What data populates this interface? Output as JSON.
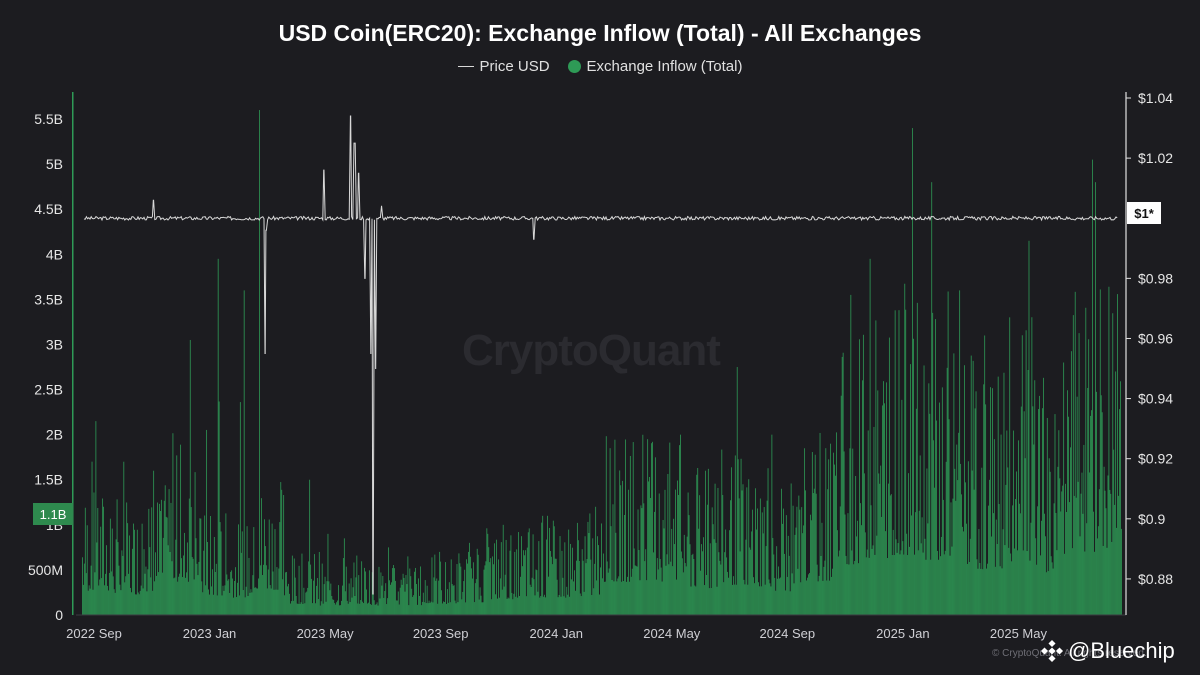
{
  "chart_data": {
    "type": "bar",
    "title": "USD Coin(ERC20): Exchange Inflow (Total) - All Exchanges",
    "legend": [
      {
        "name": "Price USD",
        "marker": "line",
        "color": "#d8d8d8"
      },
      {
        "name": "Exchange Inflow (Total)",
        "marker": "dot",
        "color": "#2e9a56"
      }
    ],
    "legend_position": "top-center",
    "grid": false,
    "x_axis": {
      "ticks": [
        "2022 Sep",
        "2023 Jan",
        "2023 May",
        "2023 Sep",
        "2024 Jan",
        "2024 May",
        "2024 Sep",
        "2025 Jan",
        "2025 May"
      ],
      "range": [
        "2022-09",
        "2025-08"
      ]
    },
    "y_left": {
      "label": "",
      "range": [
        0,
        5.8
      ],
      "unit": "B USD",
      "ticks": [
        "0",
        "500M",
        "1B",
        "1.5B",
        "2B",
        "2.5B",
        "3B",
        "3.5B",
        "4B",
        "4.5B",
        "5B",
        "5.5B"
      ]
    },
    "y_right": {
      "label": "",
      "range": [
        0.868,
        1.042
      ],
      "ticks": [
        "$0.88",
        "$0.9",
        "$0.92",
        "$0.94",
        "$0.96",
        "$0.98",
        "$1.02",
        "$1.04"
      ]
    },
    "series": [
      {
        "name": "Exchange Inflow (Total)",
        "axis": "left",
        "unit": "B",
        "monthly_typical": [
          {
            "month": "2022-09",
            "typical": 0.75,
            "peak": 2.15
          },
          {
            "month": "2022-10",
            "typical": 0.65,
            "peak": 1.7
          },
          {
            "month": "2022-11",
            "typical": 0.75,
            "peak": 1.6
          },
          {
            "month": "2022-12",
            "typical": 1.05,
            "peak": 3.05
          },
          {
            "month": "2023-01",
            "typical": 0.6,
            "peak": 3.95
          },
          {
            "month": "2023-02",
            "typical": 0.55,
            "peak": 3.6
          },
          {
            "month": "2023-03",
            "typical": 0.8,
            "peak": 5.6
          },
          {
            "month": "2023-04",
            "typical": 0.35,
            "peak": 1.5
          },
          {
            "month": "2023-05",
            "typical": 0.3,
            "peak": 0.9
          },
          {
            "month": "2023-06",
            "typical": 0.35,
            "peak": 0.85
          },
          {
            "month": "2023-07",
            "typical": 0.3,
            "peak": 0.75
          },
          {
            "month": "2023-08",
            "typical": 0.3,
            "peak": 0.65
          },
          {
            "month": "2023-09",
            "typical": 0.35,
            "peak": 0.7
          },
          {
            "month": "2023-10",
            "typical": 0.4,
            "peak": 0.8
          },
          {
            "month": "2023-11",
            "typical": 0.5,
            "peak": 1.0
          },
          {
            "month": "2023-12",
            "typical": 0.55,
            "peak": 1.1
          },
          {
            "month": "2024-01",
            "typical": 0.55,
            "peak": 1.1
          },
          {
            "month": "2024-02",
            "typical": 0.6,
            "peak": 1.2
          },
          {
            "month": "2024-03",
            "typical": 1.05,
            "peak": 1.85
          },
          {
            "month": "2024-04",
            "typical": 1.1,
            "peak": 1.95
          },
          {
            "month": "2024-05",
            "typical": 1.0,
            "peak": 2.0
          },
          {
            "month": "2024-06",
            "typical": 0.85,
            "peak": 1.6
          },
          {
            "month": "2024-07",
            "typical": 0.95,
            "peak": 2.75
          },
          {
            "month": "2024-08",
            "typical": 0.9,
            "peak": 2.0
          },
          {
            "month": "2024-09",
            "typical": 0.75,
            "peak": 1.4
          },
          {
            "month": "2024-10",
            "typical": 1.05,
            "peak": 1.9
          },
          {
            "month": "2024-11",
            "typical": 1.6,
            "peak": 3.55
          },
          {
            "month": "2024-12",
            "typical": 1.8,
            "peak": 3.95
          },
          {
            "month": "2025-01",
            "typical": 1.9,
            "peak": 5.4
          },
          {
            "month": "2025-02",
            "typical": 1.75,
            "peak": 4.8
          },
          {
            "month": "2025-03",
            "typical": 1.55,
            "peak": 3.6
          },
          {
            "month": "2025-04",
            "typical": 1.45,
            "peak": 3.1
          },
          {
            "month": "2025-05",
            "typical": 1.7,
            "peak": 4.15
          },
          {
            "month": "2025-06",
            "typical": 1.35,
            "peak": 2.8
          },
          {
            "month": "2025-07",
            "typical": 1.9,
            "peak": 5.05
          },
          {
            "month": "2025-08",
            "typical": 2.0,
            "peak": 4.8
          }
        ],
        "current_value_label": "1.1B"
      },
      {
        "name": "Price USD",
        "axis": "right",
        "baseline": 1.0,
        "notable_points": [
          {
            "date": "2022-11-15",
            "value": 1.006
          },
          {
            "date": "2023-03-11",
            "value": 0.955
          },
          {
            "date": "2023-03-12",
            "value": 0.996
          },
          {
            "date": "2023-05-12",
            "value": 1.016
          },
          {
            "date": "2023-06-10",
            "value": 1.034
          },
          {
            "date": "2023-06-14",
            "value": 1.025
          },
          {
            "date": "2023-06-18",
            "value": 1.015
          },
          {
            "date": "2023-06-25",
            "value": 0.98
          },
          {
            "date": "2023-07-01",
            "value": 0.955
          },
          {
            "date": "2023-07-03",
            "value": 0.875
          },
          {
            "date": "2023-07-06",
            "value": 0.95
          },
          {
            "date": "2023-07-12",
            "value": 1.004
          },
          {
            "date": "2023-12-20",
            "value": 0.993
          }
        ],
        "current_value_label": "$1*"
      }
    ]
  },
  "watermark": "CryptoQuant",
  "copyright": "© CryptoQuant. All rights reserved.",
  "brand": "@Bluechip",
  "brand_icon": "binance-logo-icon",
  "colors": {
    "background": "#1c1c20",
    "inflow": "#2e9a56",
    "price": "#d8d8d8",
    "axis": "#9a9aa0"
  }
}
